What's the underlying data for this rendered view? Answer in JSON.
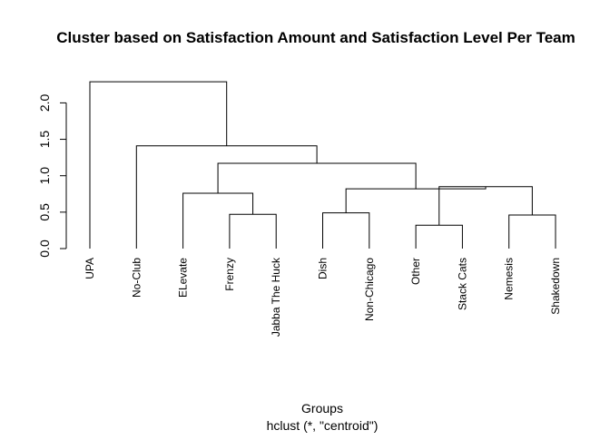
{
  "chart_data": {
    "type": "dendrogram",
    "title": "Cluster based on Satisfaction Amount and Satisfaction Level Per Team",
    "xlabel": "Groups",
    "subtitle": "hclust (*, \"centroid\")",
    "ylabel": "",
    "ylim": [
      0,
      2.3
    ],
    "y_ticks": [
      0.0,
      0.5,
      1.0,
      1.5,
      2.0
    ],
    "y_tick_labels": [
      "0.0",
      "0.5",
      "1.0",
      "1.5",
      "2.0"
    ],
    "leaves": [
      "UPA",
      "No-Club",
      "ELevate",
      "Frenzy",
      "Jabba The Huck",
      "Dish",
      "Non-Chicago",
      "Other",
      "Stack Cats",
      "Nemesis",
      "Shakedown"
    ],
    "merges": [
      {
        "id": "m1",
        "left": "L4",
        "right": "L5",
        "height": 0.47
      },
      {
        "id": "m2",
        "left": "L6",
        "right": "L7",
        "height": 0.49
      },
      {
        "id": "m3",
        "left": "L8",
        "right": "L9",
        "height": 0.32
      },
      {
        "id": "m4",
        "left": "L10",
        "right": "L11",
        "height": 0.46
      },
      {
        "id": "m5",
        "left": "L3",
        "right": "m1",
        "height": 0.76
      },
      {
        "id": "m6",
        "left": "m3",
        "right": "m4",
        "height": 0.85
      },
      {
        "id": "m7",
        "left": "m2",
        "right": "m6",
        "height": 0.82
      },
      {
        "id": "m8",
        "left": "m5",
        "right": "m7",
        "height": 1.17
      },
      {
        "id": "m9",
        "left": "L2",
        "right": "m8",
        "height": 1.41
      },
      {
        "id": "m10",
        "left": "L1",
        "right": "m9",
        "height": 2.29
      }
    ]
  }
}
